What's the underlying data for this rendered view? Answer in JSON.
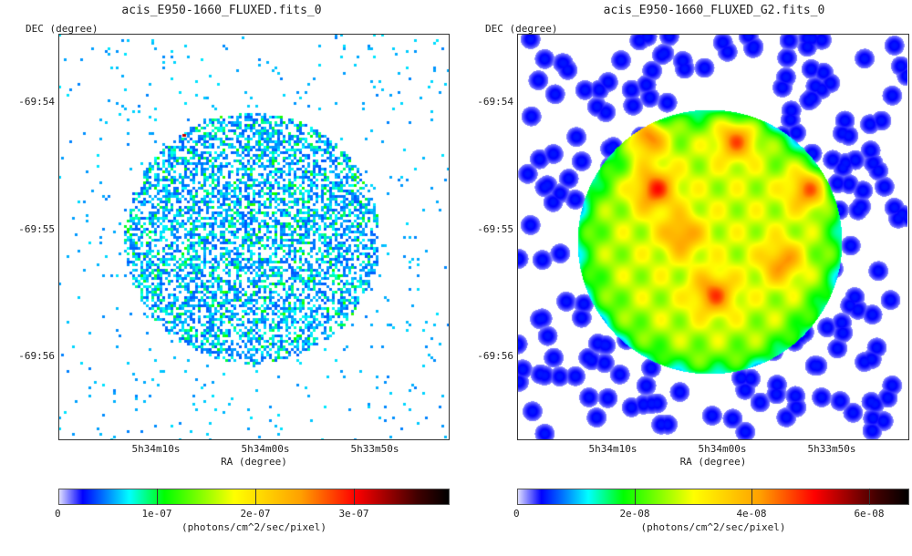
{
  "chart_data": [
    {
      "type": "heatmap",
      "title": "acis_E950-1660_FLUXED.fits_0",
      "xlabel": "RA (degree)",
      "ylabel": "DEC (degree)",
      "xticks": [
        "5h34m10s",
        "5h34m00s",
        "5h33m50s"
      ],
      "yticks": [
        "-69:54",
        "-69:55",
        "-69:56"
      ],
      "colorbar": {
        "ticks": [
          "0",
          "1e-07",
          "2e-07",
          "3e-07"
        ],
        "label": "(photons/cm^2/sec/pixel)",
        "range": [
          0,
          3.95e-07
        ]
      }
    },
    {
      "type": "heatmap",
      "title": "acis_E950-1660_FLUXED_G2.fits_0",
      "xlabel": "RA (degree)",
      "ylabel": "DEC (degree)",
      "xticks": [
        "5h34m10s",
        "5h34m00s",
        "5h33m50s"
      ],
      "yticks": [
        "-69:54",
        "-69:55",
        "-69:56"
      ],
      "colorbar": {
        "ticks": [
          "0",
          "2e-08",
          "4e-08",
          "6e-08"
        ],
        "label": "(photons/cm^2/sec/pixel)",
        "range": [
          0,
          6.6e-08
        ]
      }
    }
  ]
}
